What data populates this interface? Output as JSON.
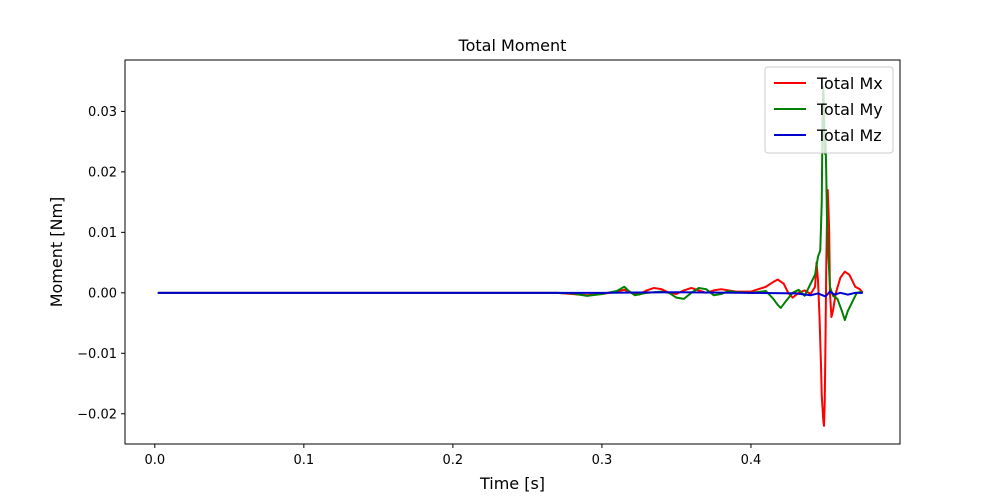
{
  "chart_data": {
    "type": "line",
    "title": "Total Moment",
    "xlabel": "Time [s]",
    "ylabel": "Moment [Nm]",
    "xlim": [
      -0.02,
      0.5
    ],
    "ylim": [
      -0.025,
      0.0385
    ],
    "xticks": [
      0.0,
      0.1,
      0.2,
      0.3,
      0.4
    ],
    "xtick_labels": [
      "0.0",
      "0.1",
      "0.2",
      "0.3",
      "0.4"
    ],
    "yticks": [
      -0.02,
      -0.01,
      0.0,
      0.01,
      0.02,
      0.03
    ],
    "ytick_labels": [
      "−0.02",
      "−0.01",
      "0.00",
      "0.01",
      "0.02",
      "0.03"
    ],
    "grid": false,
    "legend_position": "top-right",
    "series": [
      {
        "name": "Total Mx",
        "color": "#ff0000",
        "points": [
          [
            0.002,
            0.0
          ],
          [
            0.27,
            0.0
          ],
          [
            0.28,
            -0.0002
          ],
          [
            0.29,
            -0.0004
          ],
          [
            0.3,
            -0.0002
          ],
          [
            0.31,
            0.0002
          ],
          [
            0.315,
            0.0005
          ],
          [
            0.32,
            0.0
          ],
          [
            0.325,
            -0.0003
          ],
          [
            0.33,
            0.0004
          ],
          [
            0.335,
            0.0008
          ],
          [
            0.34,
            0.0006
          ],
          [
            0.345,
            0.0
          ],
          [
            0.35,
            -0.0002
          ],
          [
            0.355,
            0.0004
          ],
          [
            0.36,
            0.0008
          ],
          [
            0.365,
            0.0004
          ],
          [
            0.37,
            0.0
          ],
          [
            0.375,
            0.0004
          ],
          [
            0.38,
            0.0006
          ],
          [
            0.39,
            0.0002
          ],
          [
            0.4,
            0.0002
          ],
          [
            0.41,
            0.001
          ],
          [
            0.415,
            0.0018
          ],
          [
            0.418,
            0.0022
          ],
          [
            0.422,
            0.0015
          ],
          [
            0.425,
            0.0
          ],
          [
            0.428,
            -0.0008
          ],
          [
            0.432,
            0.0
          ],
          [
            0.436,
            0.0004
          ],
          [
            0.44,
            -0.0002
          ],
          [
            0.443,
            0.001
          ],
          [
            0.444,
            0.005
          ],
          [
            0.445,
            0.002
          ],
          [
            0.446,
            -0.004
          ],
          [
            0.447,
            -0.012
          ],
          [
            0.4475,
            -0.017
          ],
          [
            0.448,
            -0.019
          ],
          [
            0.4485,
            -0.021
          ],
          [
            0.449,
            -0.022
          ],
          [
            0.4495,
            -0.018
          ],
          [
            0.45,
            -0.008
          ],
          [
            0.4505,
            0.004
          ],
          [
            0.451,
            0.012
          ],
          [
            0.4515,
            0.017
          ],
          [
            0.452,
            0.014
          ],
          [
            0.4525,
            0.01
          ],
          [
            0.453,
            0.0
          ],
          [
            0.454,
            -0.004
          ],
          [
            0.455,
            -0.003
          ],
          [
            0.457,
            0.0
          ],
          [
            0.46,
            0.0025
          ],
          [
            0.463,
            0.0035
          ],
          [
            0.466,
            0.003
          ],
          [
            0.468,
            0.002
          ],
          [
            0.47,
            0.001
          ],
          [
            0.473,
            0.0006
          ],
          [
            0.475,
            0.0
          ]
        ]
      },
      {
        "name": "Total My",
        "color": "#008000",
        "points": [
          [
            0.002,
            0.0
          ],
          [
            0.27,
            0.0
          ],
          [
            0.28,
            -0.0001
          ],
          [
            0.29,
            -0.0005
          ],
          [
            0.3,
            -0.0002
          ],
          [
            0.31,
            0.0003
          ],
          [
            0.315,
            0.001
          ],
          [
            0.318,
            0.0003
          ],
          [
            0.322,
            -0.0004
          ],
          [
            0.33,
            0.0
          ],
          [
            0.34,
            0.0002
          ],
          [
            0.345,
            0.0
          ],
          [
            0.35,
            -0.0008
          ],
          [
            0.355,
            -0.001
          ],
          [
            0.36,
            0.0
          ],
          [
            0.365,
            0.0008
          ],
          [
            0.37,
            0.0006
          ],
          [
            0.375,
            -0.0004
          ],
          [
            0.38,
            -0.0002
          ],
          [
            0.385,
            0.0003
          ],
          [
            0.39,
            0.0001
          ],
          [
            0.4,
            0.0
          ],
          [
            0.41,
            0.0003
          ],
          [
            0.415,
            -0.001
          ],
          [
            0.418,
            -0.002
          ],
          [
            0.42,
            -0.0025
          ],
          [
            0.424,
            -0.0012
          ],
          [
            0.428,
            0.0
          ],
          [
            0.432,
            0.0005
          ],
          [
            0.436,
            -0.0005
          ],
          [
            0.44,
            0.0015
          ],
          [
            0.443,
            0.003
          ],
          [
            0.445,
            0.006
          ],
          [
            0.4465,
            0.007
          ],
          [
            0.4475,
            0.015
          ],
          [
            0.448,
            0.028
          ],
          [
            0.4485,
            0.034
          ],
          [
            0.449,
            0.03
          ],
          [
            0.4495,
            0.023
          ],
          [
            0.45,
            0.026
          ],
          [
            0.4505,
            0.02
          ],
          [
            0.451,
            0.012
          ],
          [
            0.452,
            0.006
          ],
          [
            0.453,
            0.001
          ],
          [
            0.455,
            -0.0005
          ],
          [
            0.458,
            -0.001
          ],
          [
            0.461,
            -0.003
          ],
          [
            0.463,
            -0.0045
          ],
          [
            0.465,
            -0.003
          ],
          [
            0.468,
            -0.0015
          ],
          [
            0.471,
            0.0
          ],
          [
            0.475,
            0.0002
          ]
        ]
      },
      {
        "name": "Total Mz",
        "color": "#0000cc",
        "points": [
          [
            0.002,
            0.0
          ],
          [
            0.3,
            0.0
          ],
          [
            0.35,
            0.0001
          ],
          [
            0.4,
            0.0
          ],
          [
            0.43,
            -0.0001
          ],
          [
            0.44,
            -0.0004
          ],
          [
            0.445,
            -0.0001
          ],
          [
            0.45,
            -0.0006
          ],
          [
            0.453,
            0.0002
          ],
          [
            0.456,
            -0.0003
          ],
          [
            0.46,
            0.0
          ],
          [
            0.465,
            -0.0003
          ],
          [
            0.47,
            0.0
          ],
          [
            0.475,
            0.0
          ]
        ]
      }
    ]
  }
}
